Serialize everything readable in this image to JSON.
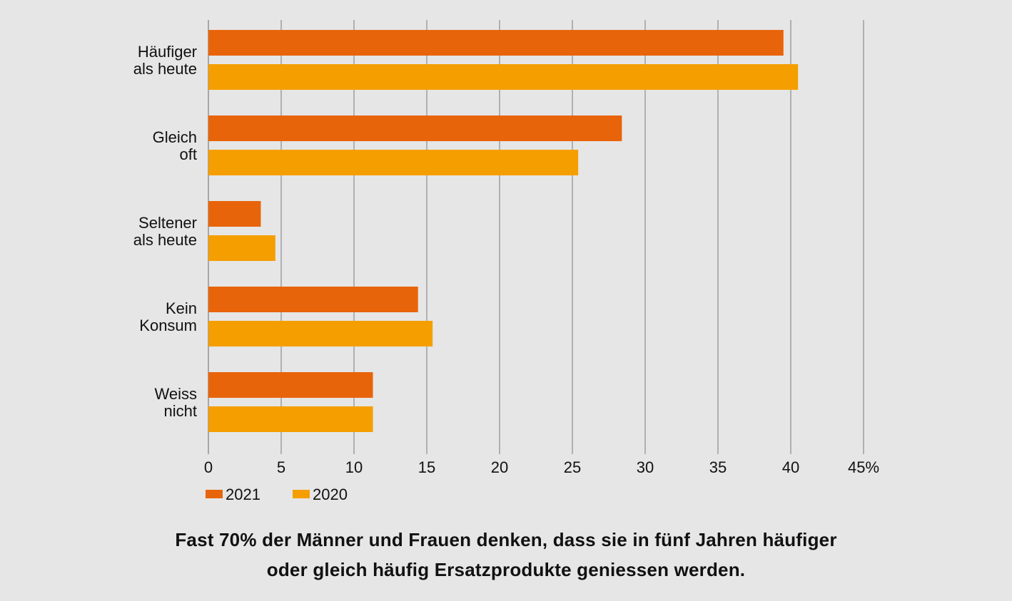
{
  "chart_data": {
    "type": "bar",
    "orientation": "horizontal",
    "categories": [
      [
        "Häufiger",
        "als heute"
      ],
      [
        "Gleich",
        "oft"
      ],
      [
        "Seltener",
        "als heute"
      ],
      [
        "Kein",
        "Konsum"
      ],
      [
        "Weiss",
        "nicht"
      ]
    ],
    "series": [
      {
        "name": "2021",
        "color": "#e8640a",
        "values": [
          39.5,
          28.4,
          3.6,
          14.4,
          11.3
        ]
      },
      {
        "name": "2020",
        "color": "#f59e00",
        "values": [
          40.5,
          25.4,
          4.6,
          15.4,
          11.3
        ]
      }
    ],
    "xlim": [
      0,
      45
    ],
    "xticks": [
      0,
      5,
      10,
      15,
      20,
      25,
      30,
      35,
      40,
      45
    ],
    "xtick_labels": [
      "0",
      "5",
      "10",
      "15",
      "20",
      "25",
      "30",
      "35",
      "40",
      "45%"
    ],
    "grid": true,
    "legend": "bottom-left",
    "title": "",
    "xlabel": "",
    "ylabel": ""
  },
  "caption": {
    "line1": "Fast 70% der Männer und Frauen denken, dass sie in fünf Jahren häufiger",
    "line2": "oder gleich häufig Ersatzprodukte geniessen werden."
  },
  "colors": {
    "background": "#e6e6e6",
    "grid": "#8c8c8c",
    "text": "#111111"
  }
}
